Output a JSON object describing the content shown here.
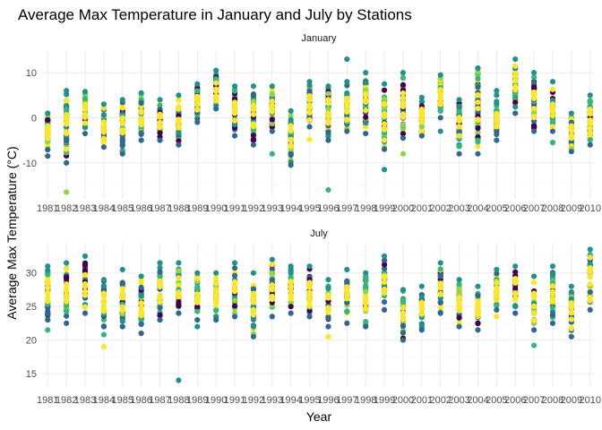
{
  "chart_data": {
    "type": "scatter",
    "title": "Average Max Temperature in January and July by Stations",
    "xlabel": "Year",
    "ylabel": "Average Max Temperature (°C)",
    "grid": true,
    "legend": "none",
    "palette": [
      "#440154",
      "#31688e",
      "#21918c",
      "#35b779",
      "#90d743",
      "#fde725"
    ],
    "years": [
      1981,
      1982,
      1983,
      1984,
      1985,
      1986,
      1987,
      1988,
      1989,
      1990,
      1991,
      1992,
      1993,
      1994,
      1995,
      1996,
      1997,
      1998,
      1999,
      2000,
      2001,
      2002,
      2003,
      2004,
      2005,
      2006,
      2007,
      2008,
      2009,
      2010
    ],
    "panels": [
      {
        "name": "January",
        "ylim": [
          -18,
          15
        ],
        "yticks": [
          -10,
          0,
          10
        ],
        "ytick_labels": [
          "-10",
          "0",
          "10"
        ],
        "ranges": [
          [
            -8.5,
            1
          ],
          [
            -10,
            6
          ],
          [
            -3.5,
            5.8
          ],
          [
            -6.5,
            3
          ],
          [
            -8,
            4
          ],
          [
            -5,
            5.5
          ],
          [
            -5,
            4
          ],
          [
            -6,
            5
          ],
          [
            -1,
            7.5
          ],
          [
            2,
            10.5
          ],
          [
            -4,
            7
          ],
          [
            -6,
            7
          ],
          [
            -3,
            7
          ],
          [
            -10.5,
            1.5
          ],
          [
            -2,
            8
          ],
          [
            -5,
            7
          ],
          [
            -3,
            8
          ],
          [
            -3.5,
            10
          ],
          [
            -7,
            7.5
          ],
          [
            -4.5,
            10
          ],
          [
            -4,
            4.5
          ],
          [
            0,
            9.5
          ],
          [
            -8,
            4
          ],
          [
            -8,
            11
          ],
          [
            -5,
            5
          ],
          [
            1,
            13
          ],
          [
            -3,
            10
          ],
          [
            -3,
            8
          ],
          [
            -7.5,
            1
          ],
          [
            -6,
            5
          ]
        ],
        "outliers": [
          {
            "year": 1982,
            "value": -16.5
          },
          {
            "year": 1993,
            "value": -8
          },
          {
            "year": 1995,
            "value": -4.8
          },
          {
            "year": 1996,
            "value": -16
          },
          {
            "year": 1997,
            "value": 13
          },
          {
            "year": 1999,
            "value": -11.5
          },
          {
            "year": 2000,
            "value": -8
          },
          {
            "year": 2002,
            "value": -3
          },
          {
            "year": 2008,
            "value": -5.5
          },
          {
            "year": 2005,
            "value": 6
          },
          {
            "year": 2004,
            "value": 11
          }
        ]
      },
      {
        "name": "July",
        "ylim": [
          13,
          34.5
        ],
        "yticks": [
          15,
          20,
          25,
          30
        ],
        "ytick_labels": [
          "15",
          "20",
          "25",
          "30"
        ],
        "ranges": [
          [
            23,
            31
          ],
          [
            22.5,
            31.5
          ],
          [
            24,
            32.5
          ],
          [
            22,
            29
          ],
          [
            22,
            30.5
          ],
          [
            21,
            29.5
          ],
          [
            23,
            31.5
          ],
          [
            24,
            31.5
          ],
          [
            23,
            30
          ],
          [
            23,
            30
          ],
          [
            23.5,
            31.5
          ],
          [
            20.5,
            30
          ],
          [
            23.5,
            32
          ],
          [
            24,
            31
          ],
          [
            23.5,
            31
          ],
          [
            22,
            29
          ],
          [
            22.5,
            30.5
          ],
          [
            22,
            30
          ],
          [
            24.5,
            32.5
          ],
          [
            20,
            27.5
          ],
          [
            21.5,
            28
          ],
          [
            24,
            31.5
          ],
          [
            22,
            29
          ],
          [
            21.5,
            28
          ],
          [
            24.5,
            30.5
          ],
          [
            24,
            31
          ],
          [
            21.5,
            29.5
          ],
          [
            22.5,
            31
          ],
          [
            20.5,
            28
          ],
          [
            24.5,
            33.5
          ]
        ],
        "outliers": [
          {
            "year": 1981,
            "value": 21.5
          },
          {
            "year": 1984,
            "value": 19
          },
          {
            "year": 1984,
            "value": 20.8
          },
          {
            "year": 1988,
            "value": 14
          },
          {
            "year": 1989,
            "value": 22
          },
          {
            "year": 1996,
            "value": 20.5
          },
          {
            "year": 2005,
            "value": 23.5
          },
          {
            "year": 2007,
            "value": 19.2
          }
        ]
      }
    ]
  }
}
